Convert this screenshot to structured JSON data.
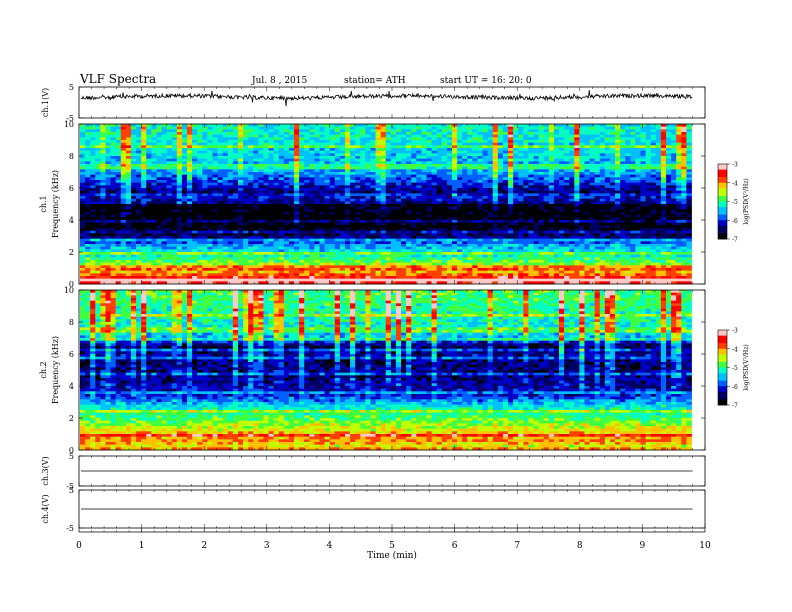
{
  "header": {
    "title": "VLF  Spectra",
    "date": "Jul.  8  , 2015",
    "station": "station= ATH",
    "start": "start  UT  =   16: 20: 0"
  },
  "chart_data": [
    {
      "type": "line",
      "panel": "ch1-waveform",
      "ylabel": "ch.1(V)",
      "ylim": [
        -5,
        5
      ],
      "yticks": [
        "5",
        "-5"
      ],
      "baseline_v": 1.8,
      "line_color": "#000000"
    },
    {
      "type": "heatmap",
      "panel": "ch1-spectrogram",
      "ylabel": "Frequency  (kHz)",
      "channel_label": "ch.1",
      "ylim": [
        0,
        10
      ],
      "yticks": [
        "0",
        "2",
        "4",
        "6",
        "8",
        "10"
      ],
      "colorbar": {
        "label": "log(PSD(V²/Hz)",
        "range": [
          -7,
          -3
        ],
        "ticks": [
          "-3",
          "-4",
          "-5",
          "-6",
          "-7"
        ]
      },
      "profile_khz_vs_logpsd": [
        [
          0,
          -3.3
        ],
        [
          0.4,
          -3.6
        ],
        [
          0.8,
          -4.2
        ],
        [
          1.2,
          -4.6
        ],
        [
          1.6,
          -5.0
        ],
        [
          2.0,
          -5.3
        ],
        [
          2.4,
          -5.6
        ],
        [
          2.8,
          -6.2
        ],
        [
          3.2,
          -6.7
        ],
        [
          4.0,
          -6.95
        ],
        [
          5.0,
          -6.9
        ],
        [
          5.5,
          -6.6
        ],
        [
          6.0,
          -6.3
        ],
        [
          6.5,
          -5.9
        ],
        [
          7.0,
          -5.6
        ],
        [
          8.0,
          -5.4
        ],
        [
          9.0,
          -5.3
        ],
        [
          10.0,
          -5.2
        ]
      ]
    },
    {
      "type": "heatmap",
      "panel": "ch2-spectrogram",
      "ylabel": "Frequency  (kHz)",
      "channel_label": "ch.2",
      "ylim": [
        0,
        10
      ],
      "yticks": [
        "0",
        "2",
        "4",
        "6",
        "8",
        "10"
      ],
      "colorbar": {
        "label": "log(PSD(V²/Hz)",
        "range": [
          -7,
          -3
        ],
        "ticks": [
          "-3",
          "-4",
          "-5",
          "-6",
          "-7"
        ]
      },
      "profile_khz_vs_logpsd": [
        [
          0,
          -4.6
        ],
        [
          0.6,
          -4.0
        ],
        [
          1.0,
          -4.1
        ],
        [
          1.4,
          -4.5
        ],
        [
          2.0,
          -4.9
        ],
        [
          2.6,
          -5.2
        ],
        [
          3.0,
          -5.6
        ],
        [
          3.5,
          -6.2
        ],
        [
          4.5,
          -6.4
        ],
        [
          5.5,
          -6.5
        ],
        [
          6.0,
          -6.3
        ],
        [
          6.5,
          -6.6
        ],
        [
          7.0,
          -5.5
        ],
        [
          8.0,
          -5.2
        ],
        [
          9.0,
          -5.0
        ],
        [
          10.0,
          -4.9
        ]
      ]
    },
    {
      "type": "line",
      "panel": "ch3-waveform",
      "ylabel": "ch.3(V)",
      "ylim": [
        -5,
        5
      ],
      "yticks": [
        "5",
        "-5"
      ],
      "baseline_v": 0,
      "line_color": "#000000"
    },
    {
      "type": "line",
      "panel": "ch4-waveform",
      "ylabel": "ch.4(V)",
      "ylim": [
        -5,
        5
      ],
      "yticks": [
        "5",
        "-5"
      ],
      "baseline_v": 0,
      "line_color": "#000000"
    }
  ],
  "x_axis": {
    "label": "Time  (min)",
    "range": [
      0,
      10
    ],
    "data_end": 9.8,
    "ticks": [
      "0",
      "1",
      "2",
      "3",
      "4",
      "5",
      "6",
      "7",
      "8",
      "9",
      "10"
    ]
  },
  "colors": {
    "scale": [
      "#000000",
      "#000060",
      "#0000c8",
      "#0060ff",
      "#00c0ff",
      "#00ffc0",
      "#40ff40",
      "#c0ff00",
      "#ffc000",
      "#ff4000",
      "#ff0000",
      "#ffc8c8"
    ]
  }
}
